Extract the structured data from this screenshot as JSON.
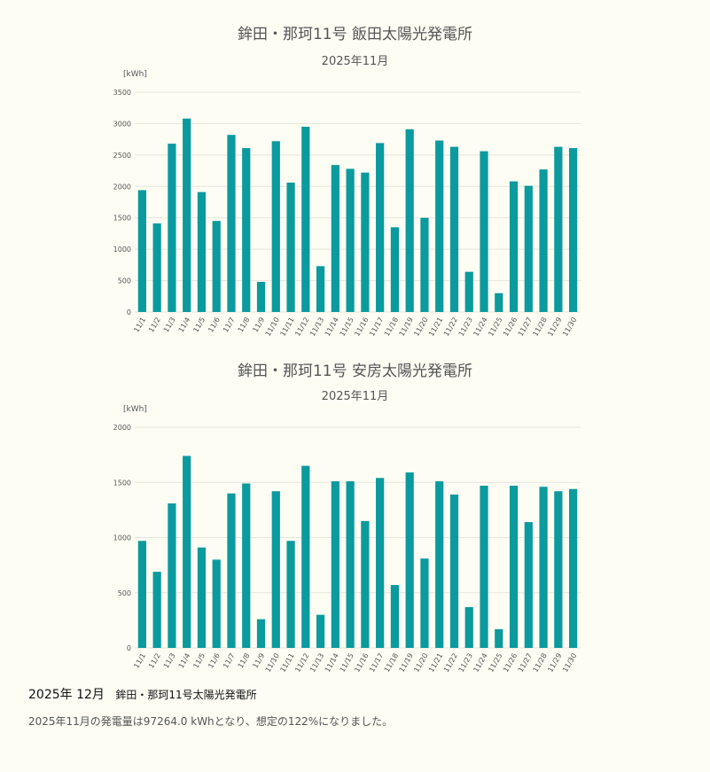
{
  "chart_data": [
    {
      "type": "bar",
      "title": "鉾田・那珂11号 飯田太陽光発電所",
      "subtitle": "2025年11月",
      "ylabel": "[kWh]",
      "ylim": [
        0,
        3500
      ],
      "yticks": [
        0,
        500,
        1000,
        1500,
        2000,
        2500,
        3000,
        3500
      ],
      "grid": true,
      "bar_color": "#0b9a9e",
      "categories": [
        "11/1",
        "11/2",
        "11/3",
        "11/4",
        "11/5",
        "11/6",
        "11/7",
        "11/8",
        "11/9",
        "11/10",
        "11/11",
        "11/12",
        "11/13",
        "11/14",
        "11/15",
        "11/16",
        "11/17",
        "11/18",
        "11/19",
        "11/20",
        "11/21",
        "11/22",
        "11/23",
        "11/24",
        "11/25",
        "11/26",
        "11/27",
        "11/28",
        "11/29",
        "11/30"
      ],
      "values": [
        1940,
        1410,
        2680,
        3080,
        1910,
        1450,
        2820,
        2610,
        480,
        2720,
        2060,
        2950,
        730,
        2340,
        2280,
        2220,
        2690,
        1350,
        2910,
        1500,
        2730,
        2630,
        640,
        2560,
        300,
        2080,
        2010,
        2270,
        2630,
        2610
      ]
    },
    {
      "type": "bar",
      "title": "鉾田・那珂11号 安房太陽光発電所",
      "subtitle": "2025年11月",
      "ylabel": "[kWh]",
      "ylim": [
        0,
        2000
      ],
      "yticks": [
        0,
        500,
        1000,
        1500,
        2000
      ],
      "grid": true,
      "bar_color": "#0b9a9e",
      "categories": [
        "11/1",
        "11/2",
        "11/3",
        "11/4",
        "11/5",
        "11/6",
        "11/7",
        "11/8",
        "11/9",
        "11/10",
        "11/11",
        "11/12",
        "11/13",
        "11/14",
        "11/15",
        "11/16",
        "11/17",
        "11/18",
        "11/19",
        "11/20",
        "11/21",
        "11/22",
        "11/23",
        "11/24",
        "11/25",
        "11/26",
        "11/27",
        "11/28",
        "11/29",
        "11/30"
      ],
      "values": [
        970,
        690,
        1310,
        1740,
        910,
        800,
        1400,
        1490,
        260,
        1420,
        970,
        1650,
        300,
        1510,
        1510,
        1150,
        1540,
        570,
        1590,
        810,
        1510,
        1390,
        370,
        1470,
        170,
        1470,
        1140,
        1460,
        1420,
        1440
      ]
    }
  ],
  "footer": {
    "date": "2025年 12月",
    "plant": "鉾田・那珂11号太陽光発電所",
    "summary": "2025年11月の発電量は97264.0 kWhとなり、想定の122%になりました。"
  }
}
